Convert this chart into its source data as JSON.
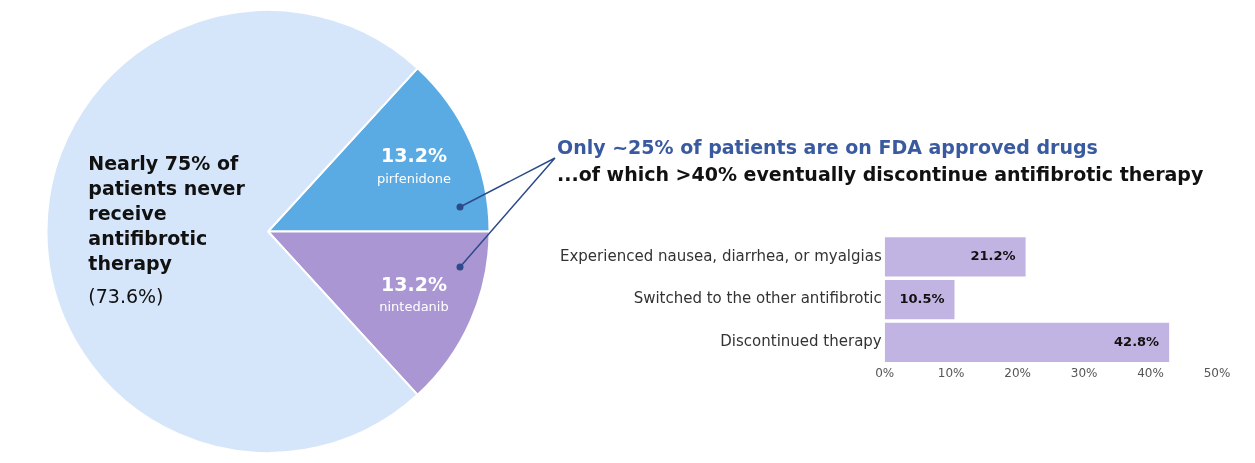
{
  "chart_data": [
    {
      "type": "pie",
      "categories": [
        "pirfenidone",
        "nintedanib",
        "Nearly 75% of patients never receive antifibrotic therapy"
      ],
      "values": [
        13.2,
        13.2,
        73.6
      ],
      "colors": [
        "#5aaae3",
        "#a996d3",
        "#d6e6fa"
      ],
      "value_labels": [
        "13.2%",
        "13.2%",
        "(73.6%)"
      ],
      "legend": false
    },
    {
      "type": "bar",
      "orientation": "horizontal",
      "title": "Only ~25% of patients are on FDA approved drugs",
      "subtitle": "...of which >40% eventually discontinue antifibrotic therapy",
      "categories": [
        "Experienced nausea, diarrhea, or myalgias",
        "Switched to the other antifibrotic",
        "Discontinued therapy"
      ],
      "values": [
        21.2,
        10.5,
        42.8
      ],
      "color": "#c2b4e2",
      "value_labels": [
        "21.2%",
        "10.5%",
        "42.8%"
      ],
      "xlim": [
        0,
        50
      ],
      "xticks": [
        {
          "value": 0,
          "label": "0%"
        },
        {
          "value": 10,
          "label": "10%"
        },
        {
          "value": 20,
          "label": "20%"
        },
        {
          "value": 30,
          "label": "30%"
        },
        {
          "value": 40,
          "label": "40%"
        },
        {
          "value": 50,
          "label": "50%"
        }
      ],
      "grid": false,
      "legend": false
    }
  ]
}
